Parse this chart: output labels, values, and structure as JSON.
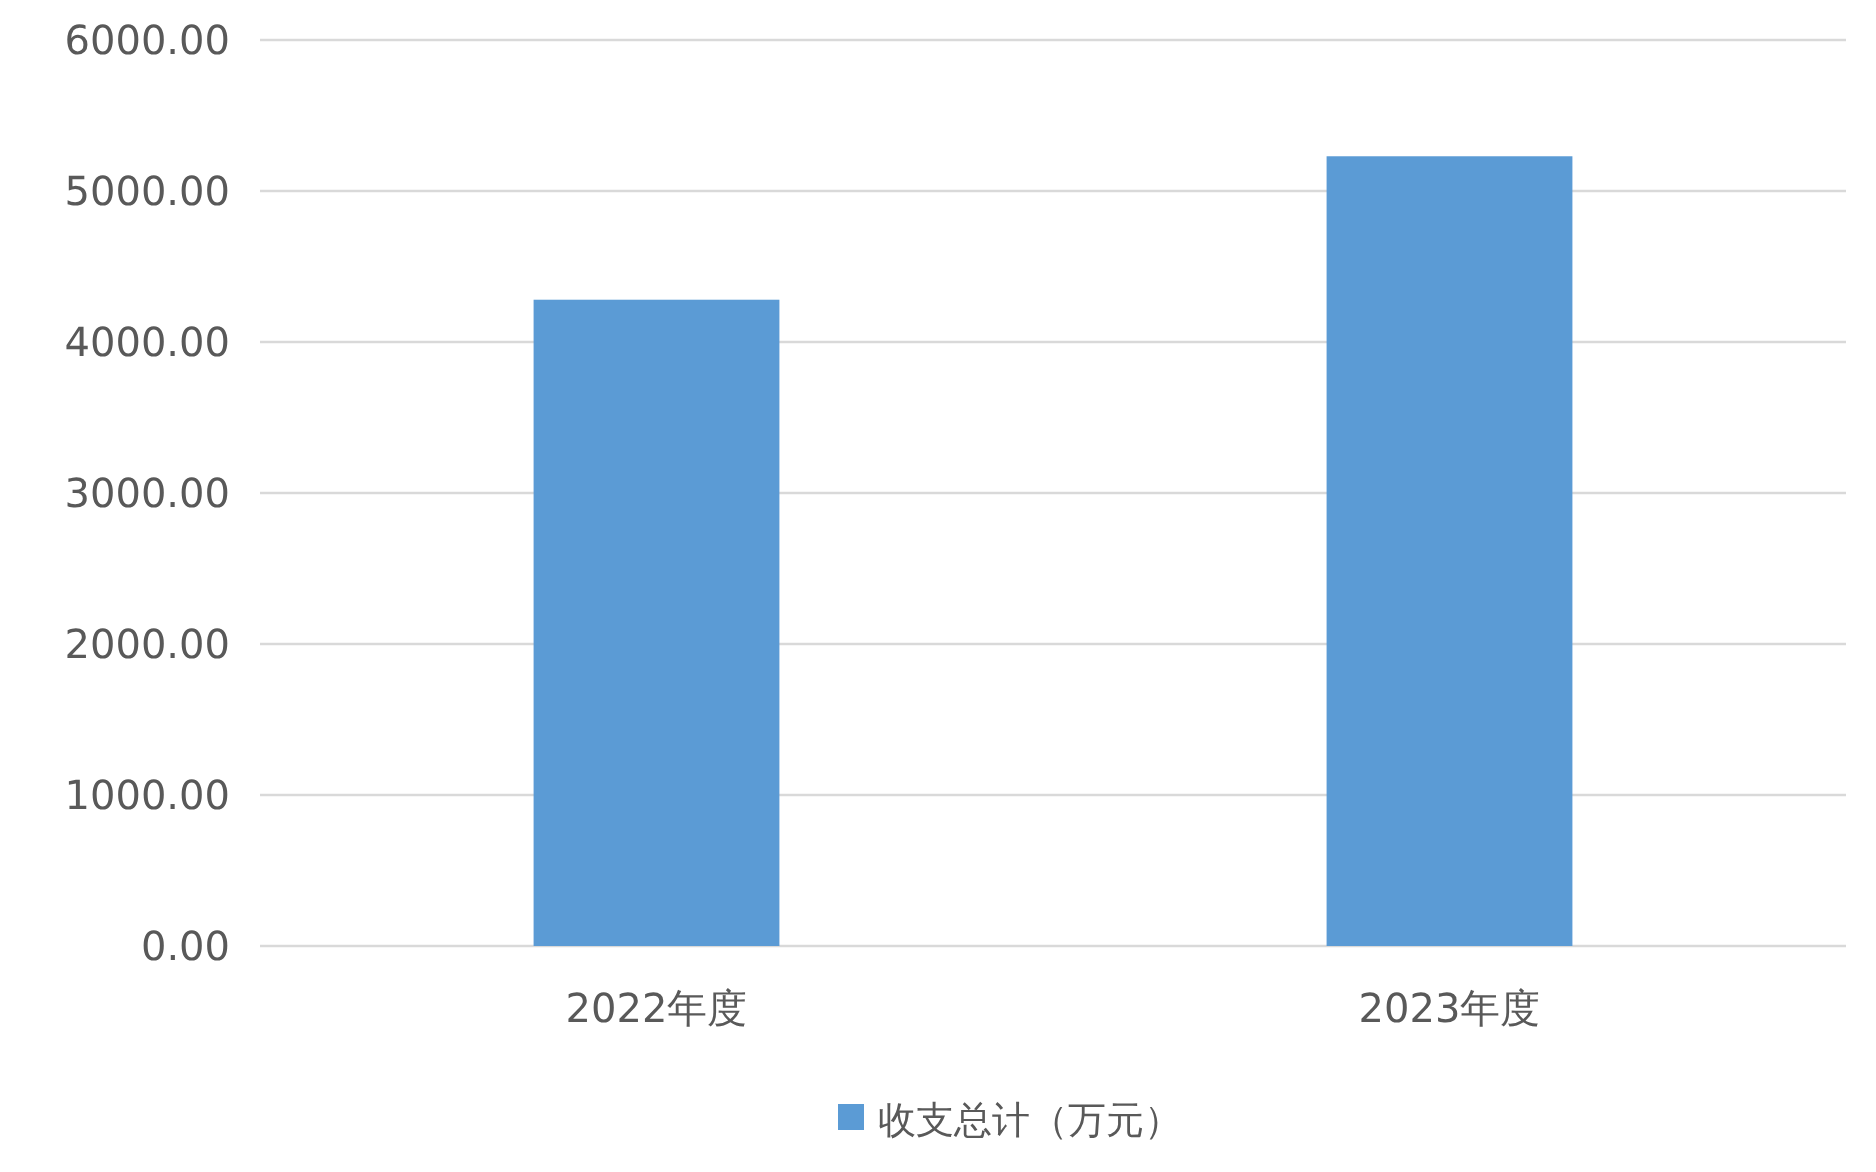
{
  "chart_data": {
    "type": "bar",
    "categories": [
      "2022年度",
      "2023年度"
    ],
    "series": [
      {
        "name": "收支总计（万元）",
        "color": "#5b9bd5",
        "values": [
          4280,
          5230
        ]
      }
    ],
    "ylim": [
      0,
      6000
    ],
    "yticks": [
      {
        "value": 0,
        "label": "0.00"
      },
      {
        "value": 1000,
        "label": "1000.00"
      },
      {
        "value": 2000,
        "label": "2000.00"
      },
      {
        "value": 3000,
        "label": "3000.00"
      },
      {
        "value": 4000,
        "label": "4000.00"
      },
      {
        "value": 5000,
        "label": "5000.00"
      },
      {
        "value": 6000,
        "label": "6000.00"
      }
    ],
    "grid": "y",
    "legend": "bottom"
  }
}
